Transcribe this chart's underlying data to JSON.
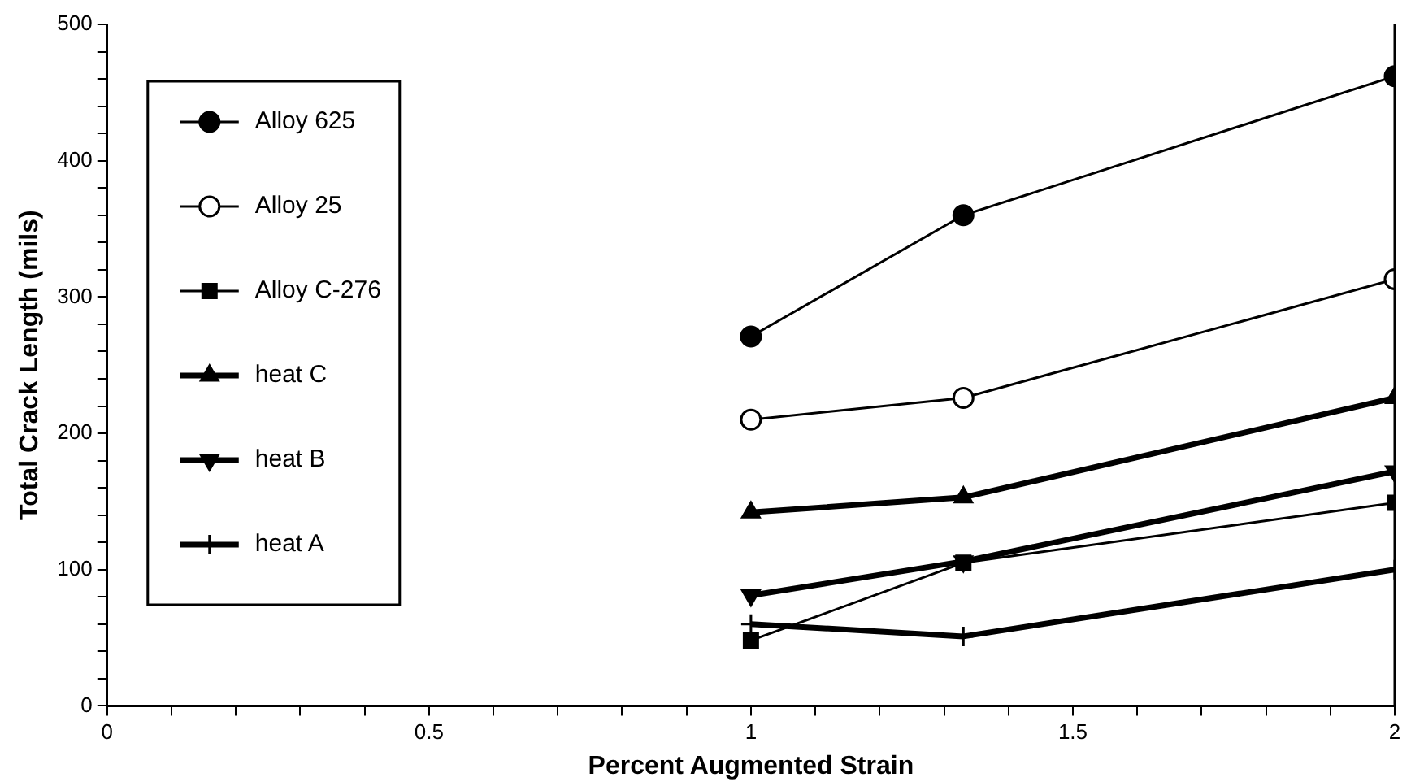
{
  "chart_data": {
    "type": "line",
    "xlabel": "Percent Augmented Strain",
    "ylabel": "Total Crack Length (mils)",
    "xlim": [
      0,
      2
    ],
    "ylim": [
      0,
      500
    ],
    "xticks": [
      0,
      {
        "value": 0.1,
        "label": null
      },
      {
        "value": 0.2,
        "label": null
      },
      {
        "value": 0.3,
        "label": null
      },
      {
        "value": 0.4,
        "label": null
      },
      0.5,
      {
        "value": 0.6,
        "label": null
      },
      {
        "value": 0.7,
        "label": null
      },
      {
        "value": 0.8,
        "label": null
      },
      {
        "value": 0.9,
        "label": null
      },
      1,
      {
        "value": 1.1,
        "label": null
      },
      {
        "value": 1.2,
        "label": null
      },
      {
        "value": 1.3,
        "label": null
      },
      {
        "value": 1.4,
        "label": null
      },
      1.5,
      {
        "value": 1.6,
        "label": null
      },
      {
        "value": 1.7,
        "label": null
      },
      {
        "value": 1.8,
        "label": null
      },
      {
        "value": 1.9,
        "label": null
      },
      2
    ],
    "yticks": [
      0,
      {
        "value": 20,
        "label": null
      },
      {
        "value": 40,
        "label": null
      },
      {
        "value": 60,
        "label": null
      },
      {
        "value": 80,
        "label": null
      },
      100,
      {
        "value": 120,
        "label": null
      },
      {
        "value": 140,
        "label": null
      },
      {
        "value": 160,
        "label": null
      },
      {
        "value": 180,
        "label": null
      },
      200,
      {
        "value": 220,
        "label": null
      },
      {
        "value": 240,
        "label": null
      },
      {
        "value": 260,
        "label": null
      },
      {
        "value": 280,
        "label": null
      },
      300,
      {
        "value": 320,
        "label": null
      },
      {
        "value": 340,
        "label": null
      },
      {
        "value": 360,
        "label": null
      },
      {
        "value": 380,
        "label": null
      },
      400,
      {
        "value": 420,
        "label": null
      },
      {
        "value": 440,
        "label": null
      },
      {
        "value": 460,
        "label": null
      },
      {
        "value": 480,
        "label": null
      },
      500
    ],
    "x": [
      1,
      1.33,
      2
    ],
    "grid": false,
    "legend": "top left",
    "line_style": "solid",
    "series": [
      {
        "name": "Alloy 625",
        "color": "#000000",
        "marker": "circle",
        "values": [
          271,
          360,
          462
        ]
      },
      {
        "name": "Alloy 25",
        "color": "#000000",
        "marker": "circle",
        "values": [
          210,
          226,
          313
        ]
      },
      {
        "name": "Alloy C-276",
        "color": "#000000",
        "marker": "square",
        "values": [
          48,
          105,
          149
        ]
      },
      {
        "name": "heat C",
        "color": "#000000",
        "marker": "triangle",
        "values": [
          142,
          153,
          226
        ]
      },
      {
        "name": "heat B",
        "color": "#000000",
        "marker": "triangle-down",
        "values": [
          81,
          106,
          172
        ]
      },
      {
        "name": "heat A",
        "color": "#000000",
        "marker": "cross",
        "values": [
          60,
          51,
          100
        ]
      }
    ]
  }
}
